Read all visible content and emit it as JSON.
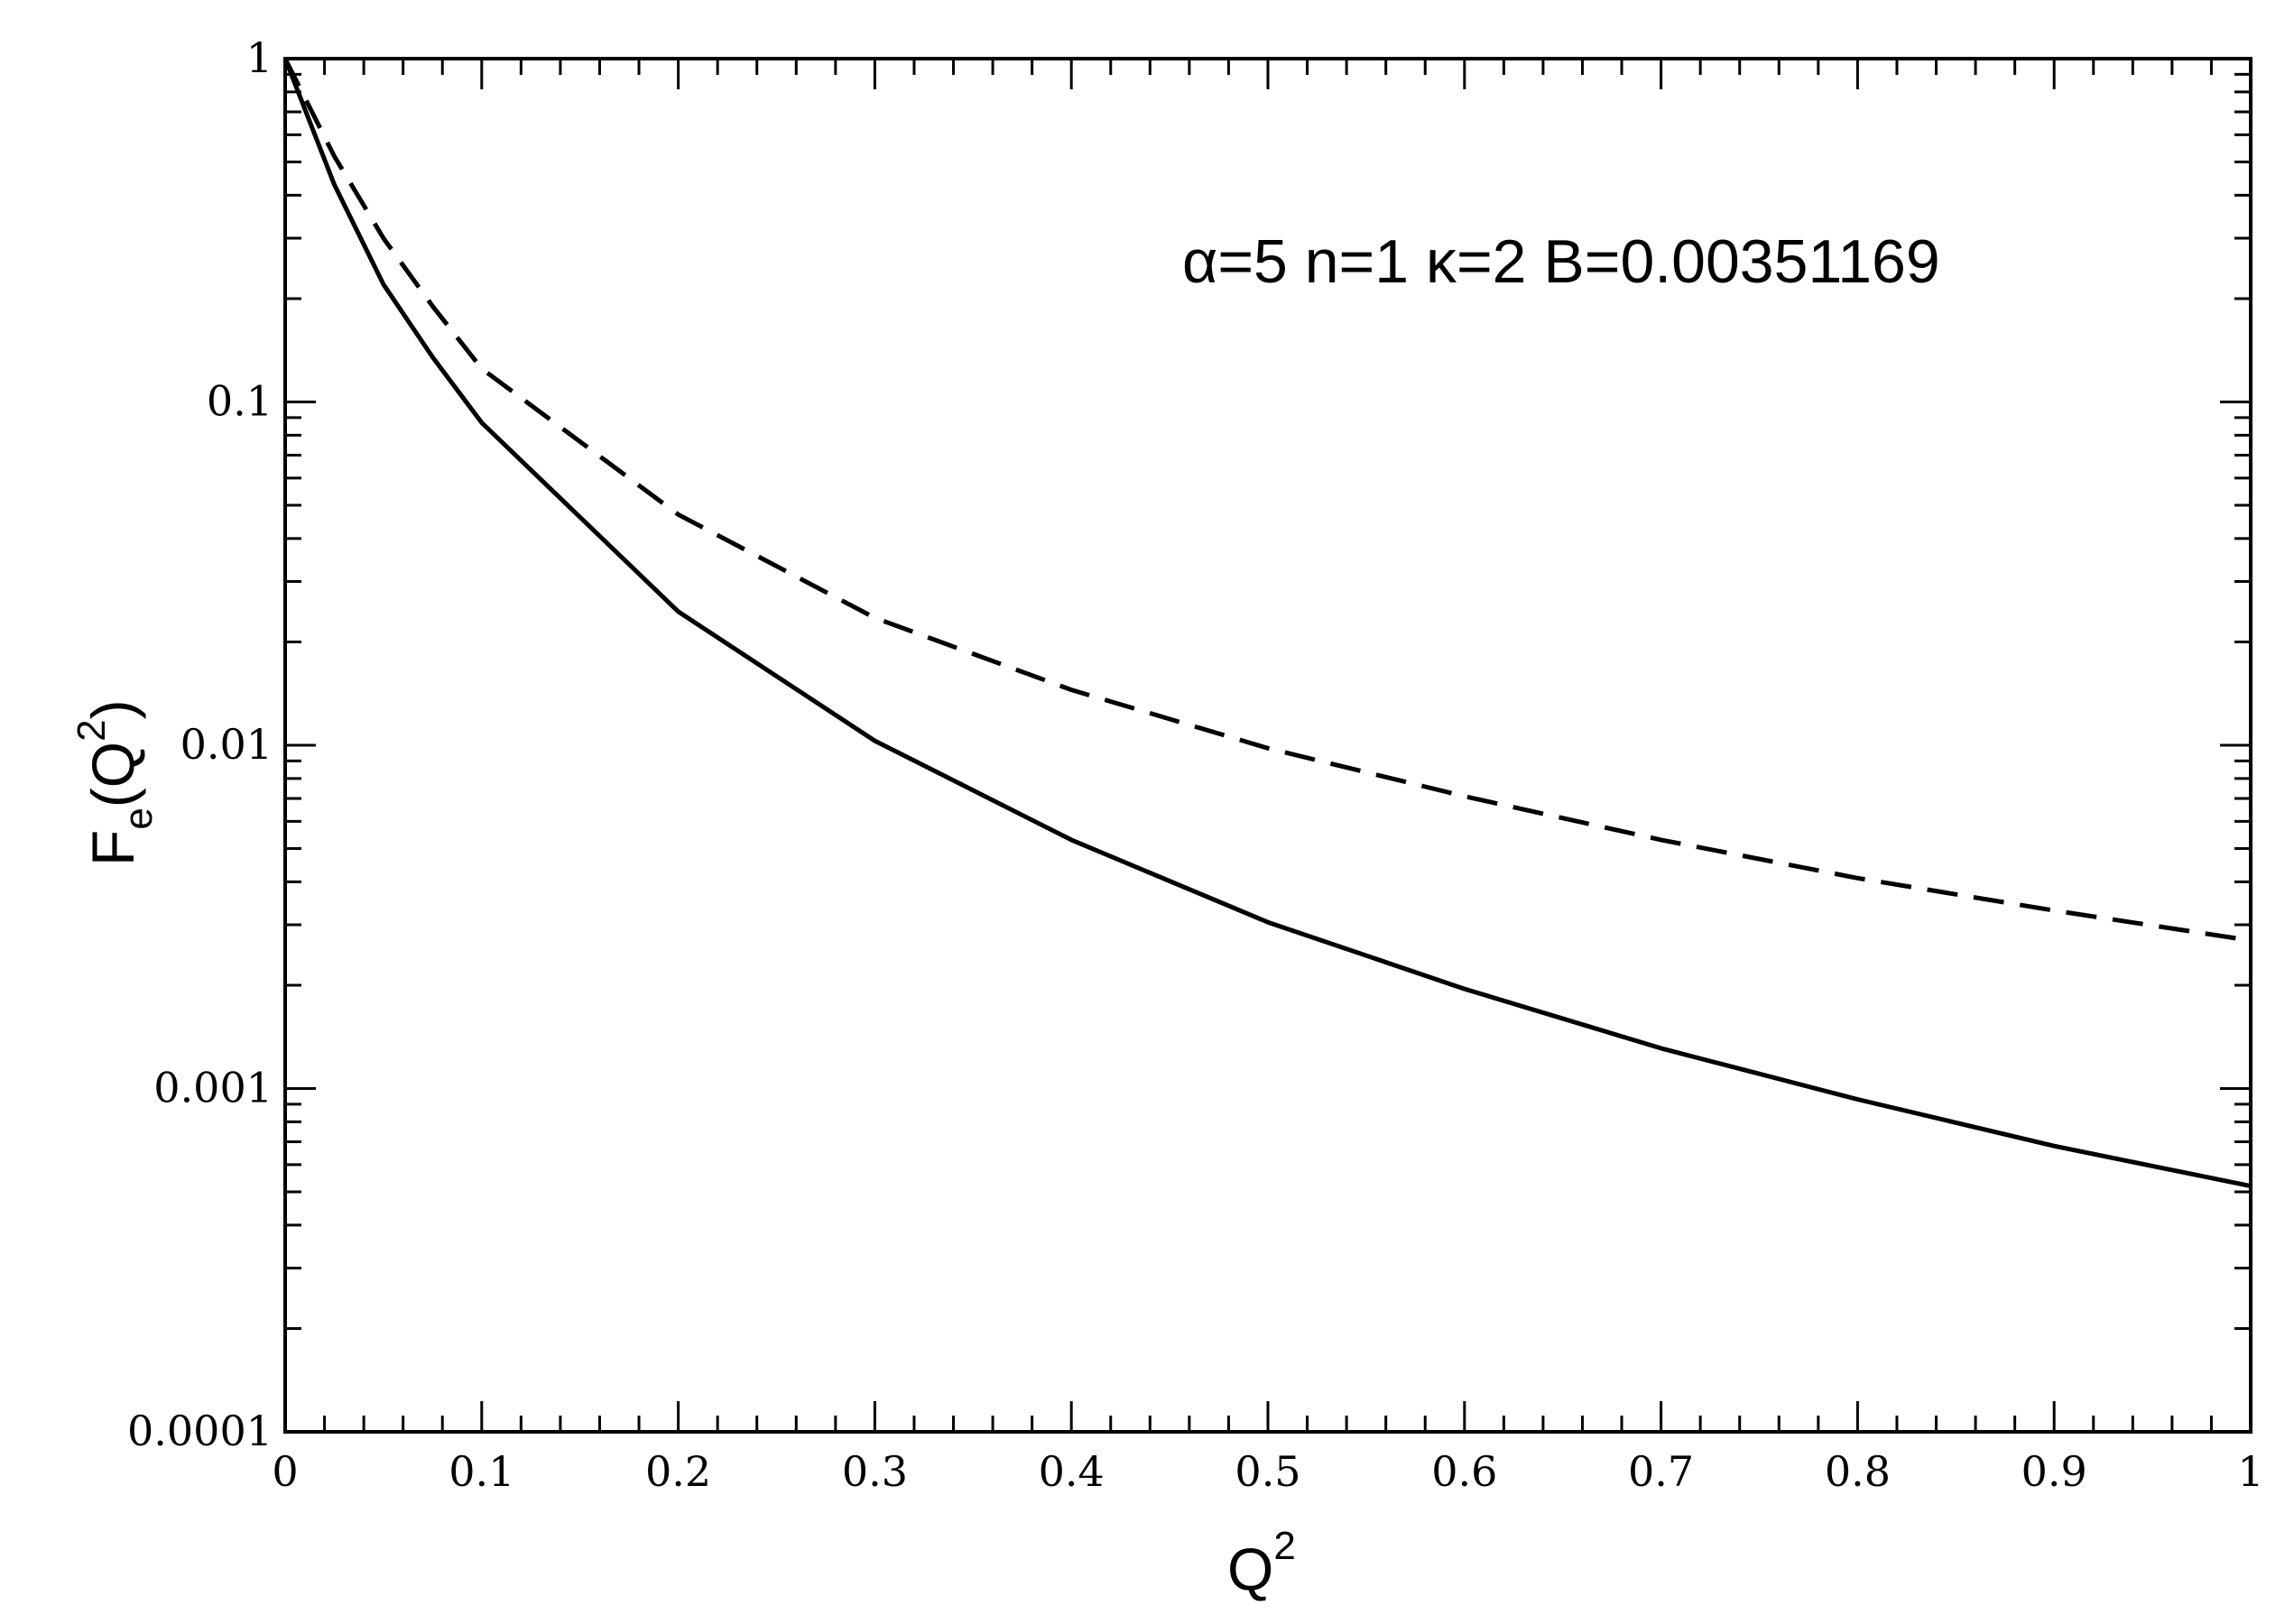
{
  "chart_data": {
    "type": "line",
    "xlabel": {
      "base": "Q",
      "sup": "2"
    },
    "ylabel": {
      "base": "F",
      "sub": "e",
      "open": "(Q",
      "sup": "2",
      "close": ")"
    },
    "annotation": "α=5 n=1 κ=2 B=0.00351169",
    "xlim": [
      0,
      1
    ],
    "ylim": [
      0.0001,
      1
    ],
    "yscale": "log",
    "grid": false,
    "x_ticks": [
      "0",
      "0.1",
      "0.2",
      "0.3",
      "0.4",
      "0.5",
      "0.6",
      "0.7",
      "0.8",
      "0.9",
      "1"
    ],
    "y_ticks": [
      "0.0001",
      "0.001",
      "0.01",
      "0.1",
      "1"
    ],
    "series": [
      {
        "style": "solid",
        "color": "#000000",
        "x": [
          0,
          0.025,
          0.05,
          0.075,
          0.1,
          0.2,
          0.3,
          0.4,
          0.5,
          0.6,
          0.7,
          0.8,
          0.9,
          1.0
        ],
        "y": [
          1.0,
          0.43,
          0.22,
          0.135,
          0.087,
          0.0245,
          0.0103,
          0.0053,
          0.00305,
          0.00195,
          0.00131,
          0.00093,
          0.00068,
          0.00052
        ]
      },
      {
        "style": "dashed",
        "color": "#000000",
        "x": [
          0,
          0.025,
          0.05,
          0.075,
          0.1,
          0.2,
          0.3,
          0.4,
          0.5,
          0.6,
          0.7,
          0.8,
          0.9,
          1.0
        ],
        "y": [
          1.0,
          0.52,
          0.3,
          0.19,
          0.125,
          0.047,
          0.0235,
          0.0145,
          0.0098,
          0.0071,
          0.0053,
          0.0041,
          0.0033,
          0.0027
        ]
      }
    ]
  }
}
